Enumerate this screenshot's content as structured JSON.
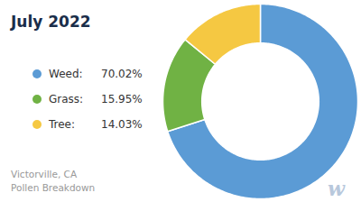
{
  "chart_data": {
    "type": "donut",
    "title": "July 2022",
    "subtitle": [
      "Victorville, CA",
      "Pollen Breakdown"
    ],
    "categories": [
      "Weed:",
      "Grass:",
      "Tree:"
    ],
    "values": [
      70.02,
      15.95,
      14.03
    ],
    "value_labels": [
      "70.02%",
      "15.95%",
      "14.03%"
    ],
    "colors": [
      "#5B9BD5",
      "#70B244",
      "#F5C842"
    ],
    "legend": "left",
    "annotations": [
      {
        "text": "w"
      }
    ]
  }
}
